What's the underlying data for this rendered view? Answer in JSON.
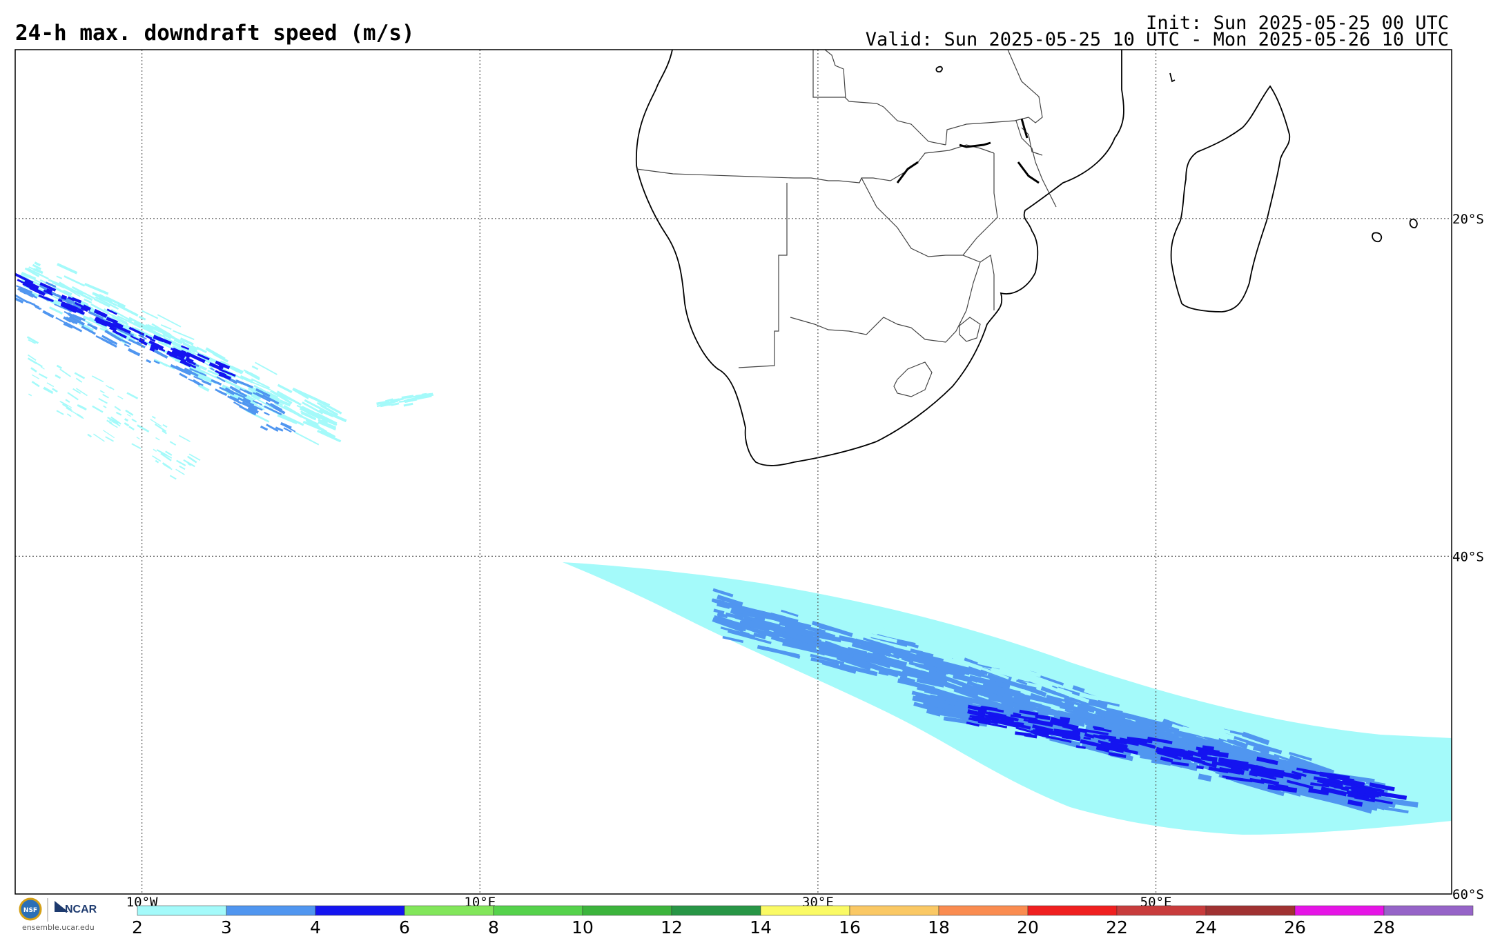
{
  "header": {
    "title": "24-h max. downdraft speed (m/s)",
    "init": "Init: Sun 2025-05-25 00 UTC",
    "valid": "Valid: Sun 2025-05-25 10 UTC - Mon 2025-05-26 10 UTC"
  },
  "map": {
    "lon_range": [
      -17.5,
      67.5
    ],
    "lat_range": [
      -60,
      -10
    ],
    "lon_ticks": [
      {
        "value": -10,
        "label": "10°W"
      },
      {
        "value": 10,
        "label": "10°E"
      },
      {
        "value": 30,
        "label": "30°E"
      },
      {
        "value": 50,
        "label": "50°E"
      }
    ],
    "lat_ticks": [
      {
        "value": -20,
        "label": "20°S"
      },
      {
        "value": -40,
        "label": "40°S"
      },
      {
        "value": -60,
        "label": "60°S"
      }
    ],
    "gridlines": true
  },
  "colorbar": {
    "boundaries": [
      2,
      3,
      4,
      6,
      8,
      10,
      12,
      14,
      16,
      18,
      20,
      22,
      24,
      26,
      28
    ],
    "labels": [
      "2",
      "3",
      "4",
      "6",
      "8",
      "10",
      "12",
      "14",
      "16",
      "18",
      "20",
      "22",
      "24",
      "26",
      "28"
    ],
    "colors": [
      "#a4fafa",
      "#5096f0",
      "#1414f0",
      "#82e65a",
      "#55d24b",
      "#3cb43c",
      "#289646",
      "#fafa64",
      "#fac864",
      "#fa8c50",
      "#f02020",
      "#c83c3c",
      "#a03232",
      "#e614e6",
      "#9664c8"
    ]
  },
  "logo": {
    "nsf": "NSF",
    "ncar": "NCAR",
    "website": "ensemble.ucar.edu"
  }
}
